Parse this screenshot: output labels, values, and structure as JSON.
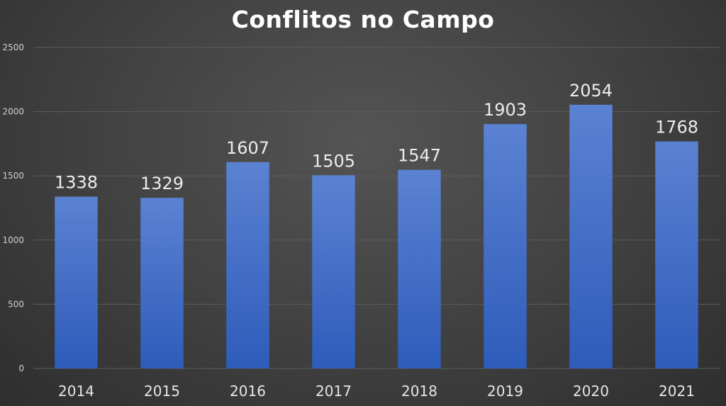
{
  "chart_data": {
    "type": "bar",
    "title": "Conflitos no Campo",
    "xlabel": "",
    "ylabel": "",
    "categories": [
      "2014",
      "2015",
      "2016",
      "2017",
      "2018",
      "2019",
      "2020",
      "2021"
    ],
    "values": [
      1338,
      1329,
      1607,
      1505,
      1547,
      1903,
      2054,
      1768
    ],
    "data_labels": [
      "1338",
      "1329",
      "1607",
      "1505",
      "1547",
      "1903",
      "2054",
      "1768"
    ],
    "ylim": [
      0,
      2500
    ],
    "yticks": [
      0,
      500,
      1000,
      1500,
      2000,
      2500
    ],
    "grid": true,
    "legend": "none",
    "colors": {
      "bar_top": "#5b82d2",
      "bar_bottom": "#2e5cba",
      "background": "#404040",
      "title": "#ffffff"
    }
  }
}
